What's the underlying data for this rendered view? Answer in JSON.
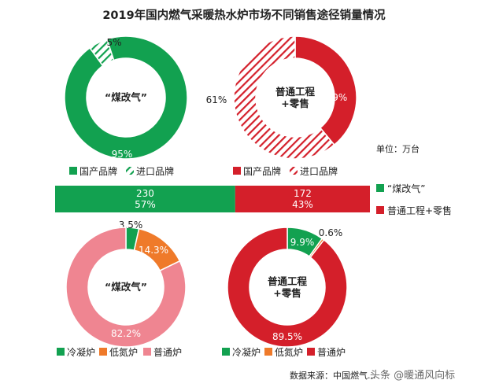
{
  "colors": {
    "green": "#12a150",
    "red": "#d41f2a",
    "orange": "#ef7a2a",
    "pink": "#ef8591",
    "white": "#ffffff"
  },
  "chart_data": {
    "title": "2019年国内燃气采暖热水炉市场不同销售途径销量情况",
    "unit": "单位：万台",
    "source": "数据来源：中国燃气...",
    "watermark": "头条 @暖通风向标",
    "charts": [
      {
        "type": "pie",
        "style": "donut",
        "center_label": "“煤改气”",
        "slices": [
          {
            "name": "国产品牌",
            "value": 95,
            "label": "95%",
            "color": "green",
            "hatch": false
          },
          {
            "name": "进口品牌",
            "value": 5,
            "label": "5%",
            "color": "green",
            "hatch": true
          }
        ]
      },
      {
        "type": "pie",
        "style": "donut",
        "center_label": "普通工程\n+零售",
        "slices": [
          {
            "name": "国产品牌",
            "value": 39,
            "label": "39%",
            "color": "red",
            "hatch": false
          },
          {
            "name": "进口品牌",
            "value": 61,
            "label": "61%",
            "color": "red",
            "hatch": true
          }
        ]
      },
      {
        "type": "bar",
        "style": "stacked-horizontal",
        "segments": [
          {
            "name": "“煤改气”",
            "value": 230,
            "label": "57%",
            "color": "green"
          },
          {
            "name": "普通工程+零售",
            "value": 172,
            "label": "43%",
            "color": "red"
          }
        ]
      },
      {
        "type": "pie",
        "style": "donut",
        "center_label": "“煤改气”",
        "slices": [
          {
            "name": "冷凝炉",
            "value": 3.5,
            "label": "3.5%",
            "color": "green"
          },
          {
            "name": "低氮炉",
            "value": 14.3,
            "label": "14.3%",
            "color": "orange"
          },
          {
            "name": "普通炉",
            "value": 82.2,
            "label": "82.2%",
            "color": "pink"
          }
        ]
      },
      {
        "type": "pie",
        "style": "donut",
        "center_label": "普通工程\n+零售",
        "slices": [
          {
            "name": "冷凝炉",
            "value": 9.9,
            "label": "9.9%",
            "color": "green"
          },
          {
            "name": "低氮炉",
            "value": 0.6,
            "label": "0.6%",
            "color": "orange"
          },
          {
            "name": "普通炉",
            "value": 89.5,
            "label": "89.5%",
            "color": "red"
          }
        ]
      }
    ]
  }
}
